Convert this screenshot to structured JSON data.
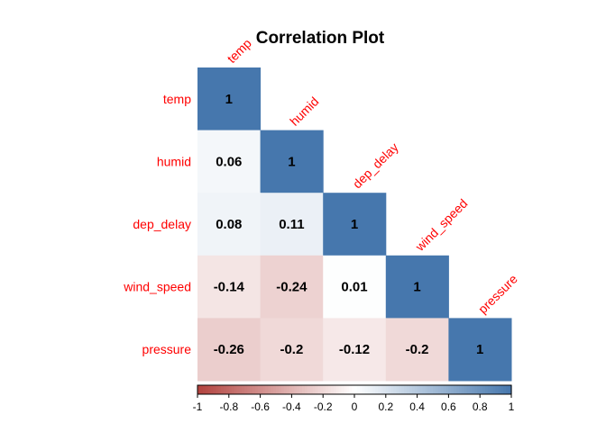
{
  "chart_data": {
    "type": "heatmap",
    "title": "Correlation Plot",
    "variables": [
      "temp",
      "humid",
      "dep_delay",
      "wind_speed",
      "pressure"
    ],
    "matrix": [
      [
        1,
        null,
        null,
        null,
        null
      ],
      [
        0.06,
        1,
        null,
        null,
        null
      ],
      [
        0.08,
        0.11,
        1,
        null,
        null
      ],
      [
        -0.14,
        -0.24,
        0.01,
        1,
        null
      ],
      [
        -0.26,
        -0.2,
        -0.12,
        -0.2,
        1
      ]
    ],
    "value_labels": [
      [
        "1",
        null,
        null,
        null,
        null
      ],
      [
        "0.06",
        "1",
        null,
        null,
        null
      ],
      [
        "0.08",
        "0.11",
        "1",
        null,
        null
      ],
      [
        "-0.14",
        "-0.24",
        "0.01",
        "1",
        null
      ],
      [
        "-0.26",
        "-0.2",
        "-0.12",
        "-0.2",
        "1"
      ]
    ],
    "layout": "lower-triangle",
    "color_scale": {
      "min": -1,
      "max": 1,
      "colors": [
        "#b2423e",
        "#ffffff",
        "#4677ad"
      ],
      "ticks": [
        "-1",
        "-0.8",
        "-0.6",
        "-0.4",
        "-0.2",
        "0",
        "0.2",
        "0.4",
        "0.6",
        "0.8",
        "1"
      ]
    },
    "label_color": "#ff0000",
    "legend_position": "bottom"
  }
}
